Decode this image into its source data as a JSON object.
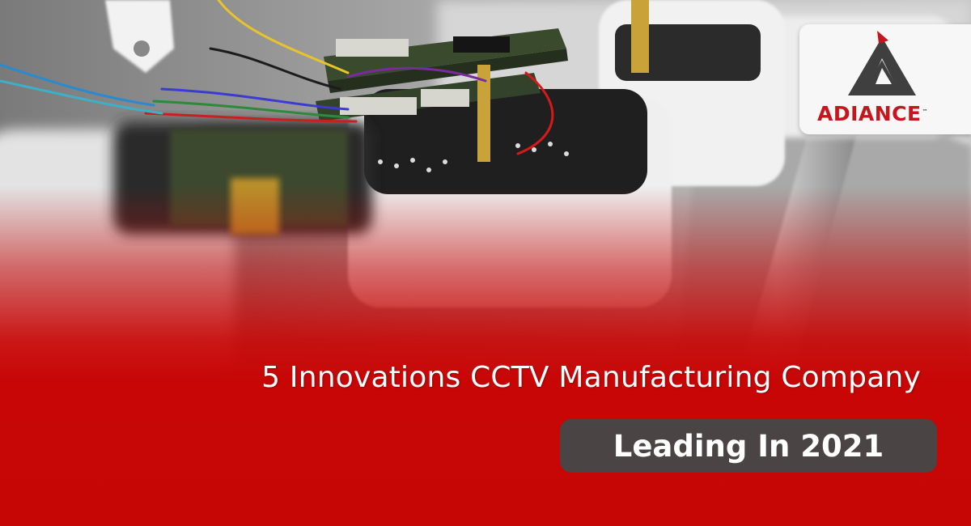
{
  "brand": {
    "name": "ADIANCE",
    "trademark": "™",
    "logo_icon": "triangle-logo-icon",
    "colors": {
      "red": "#c8141d",
      "dark": "#3f3f3f",
      "card": "#f7f7f7"
    }
  },
  "headline": {
    "line1": "5 Innovations CCTV Manufacturing Company",
    "line2": "Leading In 2021"
  },
  "colors": {
    "banner_red": "#c80606",
    "pill_bg": "#4a4444",
    "text": "#ffffff"
  }
}
